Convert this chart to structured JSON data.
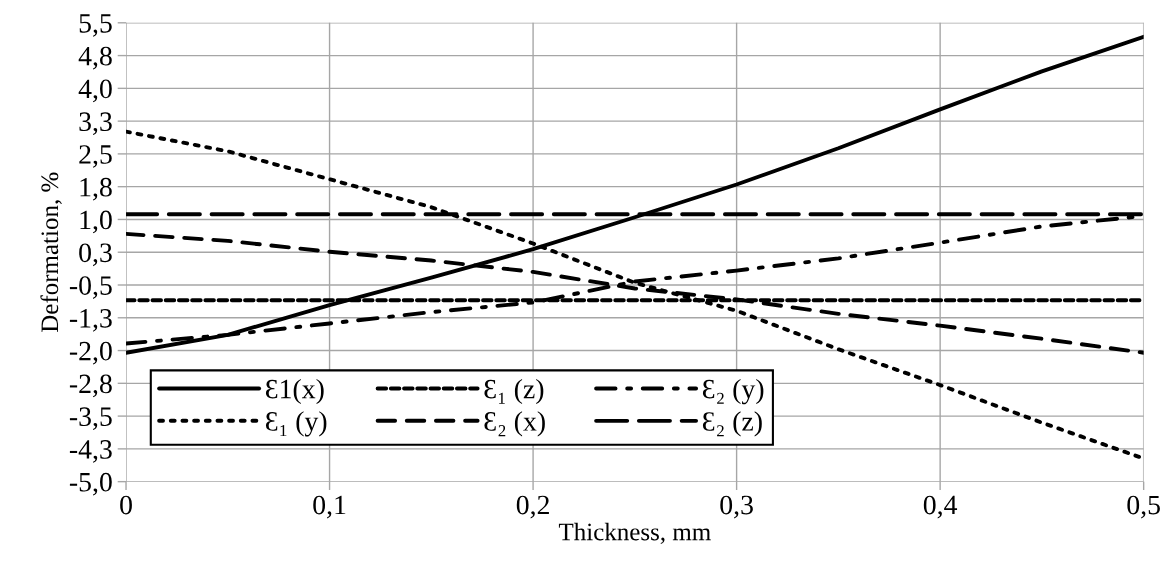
{
  "chart_data": {
    "type": "line",
    "xlabel": "Thickness, mm",
    "ylabel": "Deformation, %",
    "xlim": [
      0,
      0.5
    ],
    "xticks": [
      0,
      {
        "value": 0.1,
        "label": "0,1"
      },
      {
        "value": 0.2,
        "label": "0,2"
      },
      {
        "value": 0.3,
        "label": "0,3"
      },
      {
        "value": 0.4,
        "label": "0,4"
      },
      {
        "value": 0.5,
        "label": "0,5"
      }
    ],
    "ylim": [
      -5,
      5.5
    ],
    "yticks": [
      {
        "value": -5,
        "label": "-5,0"
      },
      {
        "value": -4.25,
        "label": "-4,3"
      },
      {
        "value": -3.5,
        "label": "-3,5"
      },
      {
        "value": -2.75,
        "label": "-2,8"
      },
      {
        "value": -2,
        "label": "-2,0"
      },
      {
        "value": -1.25,
        "label": "-1,3"
      },
      {
        "value": -0.5,
        "label": "-0,5"
      },
      {
        "value": 0.25,
        "label": "0,3"
      },
      {
        "value": 1,
        "label": "1,0"
      },
      {
        "value": 1.75,
        "label": "1,8"
      },
      {
        "value": 2.5,
        "label": "2,5"
      },
      {
        "value": 3.25,
        "label": "3,3"
      },
      {
        "value": 4,
        "label": "4,0"
      },
      {
        "value": 4.75,
        "label": "4,8"
      },
      {
        "value": 5.5,
        "label": "5,5"
      }
    ],
    "x": [
      0,
      0.05,
      0.1,
      0.15,
      0.2,
      0.25,
      0.3,
      0.35,
      0.4,
      0.45,
      0.5
    ],
    "grid": true,
    "legend": "bottom",
    "marker": "none",
    "series": [
      {
        "name": "Ɛ1(x)",
        "color": "#000000",
        "line_style": "solid",
        "values": [
          -2.05,
          -1.64,
          -0.96,
          -0.33,
          0.32,
          1.05,
          1.8,
          2.63,
          3.52,
          4.39,
          5.18
        ]
      },
      {
        "name": "Ɛ₁ (y)",
        "color": "#000000",
        "line_style": "dotted",
        "values": [
          3.01,
          2.56,
          1.92,
          1.28,
          0.45,
          -0.45,
          -1.09,
          -1.97,
          -2.79,
          -3.65,
          -4.47
        ]
      },
      {
        "name": "Ɛ₁ (z)",
        "color": "#000000",
        "line_style": "short dashed",
        "values": [
          -0.85,
          -0.85,
          -0.85,
          -0.85,
          -0.85,
          -0.85,
          -0.85,
          -0.85,
          -0.85,
          -0.85,
          -0.85
        ]
      },
      {
        "name": "Ɛ₂ (x)",
        "color": "#000000",
        "line_style": "dashed",
        "values": [
          0.67,
          0.51,
          0.26,
          0.06,
          -0.2,
          -0.58,
          -0.83,
          -1.16,
          -1.43,
          -1.73,
          -2.05
        ]
      },
      {
        "name": "Ɛ₂ (y)",
        "color": "#000000",
        "line_style": "dash-dot",
        "values": [
          -1.84,
          -1.64,
          -1.38,
          -1.12,
          -0.9,
          -0.42,
          -0.17,
          0.11,
          0.47,
          0.84,
          1.08
        ]
      },
      {
        "name": "Ɛ₂ (z)",
        "color": "#000000",
        "line_style": "long dashed",
        "values": [
          1.12,
          1.12,
          1.12,
          1.12,
          1.12,
          1.12,
          1.12,
          1.12,
          1.12,
          1.12,
          1.12
        ]
      }
    ]
  }
}
